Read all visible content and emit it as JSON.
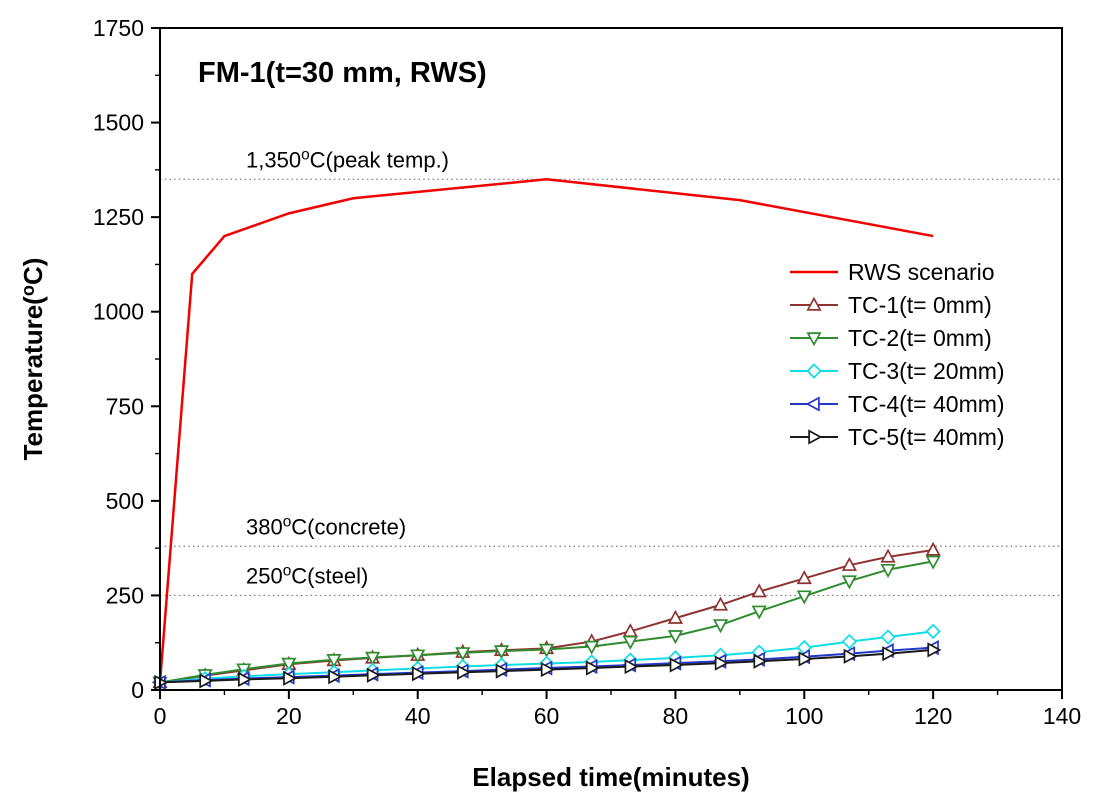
{
  "chart_data": {
    "type": "line",
    "title": "FM-1(t=30 mm, RWS)",
    "xlabel": "Elapsed time(minutes)",
    "ylabel": "Temperature(°C)",
    "xlim": [
      0,
      140
    ],
    "ylim": [
      0,
      1750
    ],
    "xticks": [
      0,
      20,
      40,
      60,
      80,
      100,
      120,
      140
    ],
    "yticks": [
      0,
      250,
      500,
      750,
      1000,
      1250,
      1500,
      1750
    ],
    "x_minor_step": 10,
    "y_minor_step": 125,
    "grid": false,
    "legend_position": "right-center",
    "frame": true,
    "reference_lines": [
      {
        "y": 1350,
        "label": "1,350°C(peak temp.)"
      },
      {
        "y": 380,
        "label": "380°C(concrete)"
      },
      {
        "y": 250,
        "label": "250°C(steel)"
      }
    ],
    "series": [
      {
        "name": "RWS scenario",
        "color": "#f20000",
        "marker": "none",
        "line_width": 2.5,
        "x": [
          0,
          5,
          10,
          20,
          30,
          60,
          90,
          120
        ],
        "y": [
          20,
          1100,
          1200,
          1260,
          1300,
          1350,
          1295,
          1200
        ]
      },
      {
        "name": "TC-1(t= 0mm)",
        "color": "#8e3331",
        "marker": "triangle-up",
        "line_width": 2,
        "x": [
          0,
          7,
          13,
          20,
          27,
          33,
          40,
          47,
          53,
          60,
          67,
          73,
          80,
          87,
          93,
          100,
          107,
          113,
          120
        ],
        "y": [
          20,
          38,
          52,
          68,
          78,
          85,
          92,
          100,
          105,
          110,
          128,
          155,
          190,
          225,
          260,
          295,
          330,
          352,
          370
        ]
      },
      {
        "name": "TC-2(t= 0mm)",
        "color": "#2e8b2e",
        "marker": "triangle-down",
        "line_width": 2,
        "x": [
          0,
          7,
          13,
          20,
          27,
          33,
          40,
          47,
          53,
          60,
          67,
          73,
          80,
          87,
          93,
          100,
          107,
          113,
          120
        ],
        "y": [
          20,
          40,
          55,
          70,
          80,
          86,
          92,
          98,
          103,
          107,
          115,
          128,
          143,
          172,
          208,
          248,
          288,
          318,
          340
        ]
      },
      {
        "name": "TC-3(t= 20mm)",
        "color": "#10dce6",
        "marker": "diamond",
        "line_width": 2,
        "x": [
          0,
          7,
          13,
          20,
          27,
          33,
          40,
          47,
          53,
          60,
          67,
          73,
          80,
          87,
          93,
          100,
          107,
          113,
          120
        ],
        "y": [
          20,
          30,
          36,
          42,
          47,
          52,
          57,
          62,
          66,
          70,
          74,
          79,
          85,
          92,
          100,
          112,
          128,
          140,
          155
        ]
      },
      {
        "name": "TC-4(t= 40mm)",
        "color": "#2438c8",
        "marker": "triangle-left",
        "line_width": 2,
        "x": [
          0,
          7,
          13,
          20,
          27,
          33,
          40,
          47,
          53,
          60,
          67,
          73,
          80,
          87,
          93,
          100,
          107,
          113,
          120
        ],
        "y": [
          20,
          26,
          30,
          34,
          38,
          42,
          46,
          50,
          54,
          58,
          62,
          66,
          71,
          76,
          81,
          88,
          96,
          104,
          112
        ]
      },
      {
        "name": "TC-5(t= 40mm)",
        "color": "#1a1a1a",
        "marker": "triangle-right",
        "line_width": 2,
        "x": [
          0,
          7,
          13,
          20,
          27,
          33,
          40,
          47,
          53,
          60,
          67,
          73,
          80,
          87,
          93,
          100,
          107,
          113,
          120
        ],
        "y": [
          20,
          24,
          28,
          31,
          35,
          39,
          43,
          47,
          50,
          54,
          58,
          62,
          66,
          71,
          76,
          82,
          89,
          96,
          106
        ]
      }
    ]
  }
}
